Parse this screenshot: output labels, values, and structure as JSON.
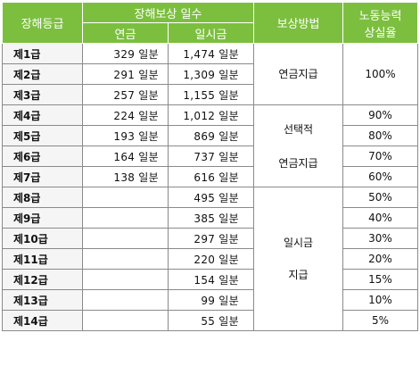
{
  "header": {
    "grade": "장해등급",
    "days": "장해보상 일수",
    "pension": "연금",
    "lump": "일시금",
    "method": "보상방법",
    "loss_line1": "노동능력",
    "loss_line2": "상실율"
  },
  "rows": [
    {
      "grade": "제1급",
      "pension": "329 일분",
      "lump": "1,474 일분",
      "rate": ""
    },
    {
      "grade": "제2급",
      "pension": "291 일분",
      "lump": "1,309 일분",
      "rate": "100%"
    },
    {
      "grade": "제3급",
      "pension": "257 일분",
      "lump": "1,155 일분",
      "rate": ""
    },
    {
      "grade": "제4급",
      "pension": "224 일분",
      "lump": "1,012 일분",
      "rate": "90%"
    },
    {
      "grade": "제5급",
      "pension": "193 일분",
      "lump": "869 일분",
      "rate": "80%"
    },
    {
      "grade": "제6급",
      "pension": "164 일분",
      "lump": "737 일분",
      "rate": "70%"
    },
    {
      "grade": "제7급",
      "pension": "138 일분",
      "lump": "616 일분",
      "rate": "60%"
    },
    {
      "grade": "제8급",
      "pension": "",
      "lump": "495 일분",
      "rate": "50%"
    },
    {
      "grade": "제9급",
      "pension": "",
      "lump": "385 일분",
      "rate": "40%"
    },
    {
      "grade": "제10급",
      "pension": "",
      "lump": "297 일분",
      "rate": "30%"
    },
    {
      "grade": "제11급",
      "pension": "",
      "lump": "220 일분",
      "rate": "20%"
    },
    {
      "grade": "제12급",
      "pension": "",
      "lump": "154 일분",
      "rate": "15%"
    },
    {
      "grade": "제13급",
      "pension": "",
      "lump": "99 일분",
      "rate": "10%"
    },
    {
      "grade": "제14급",
      "pension": "",
      "lump": "55 일분",
      "rate": "5%"
    }
  ],
  "methods": {
    "group1": "연금지급",
    "group2_line1": "선택적",
    "group2_line2": "연금지급",
    "group3_line1": "일시금",
    "group3_line2": "지급"
  },
  "colors": {
    "header_bg": "#7cbf3f",
    "header_text": "#ffffff",
    "border": "#8a8a8a"
  }
}
